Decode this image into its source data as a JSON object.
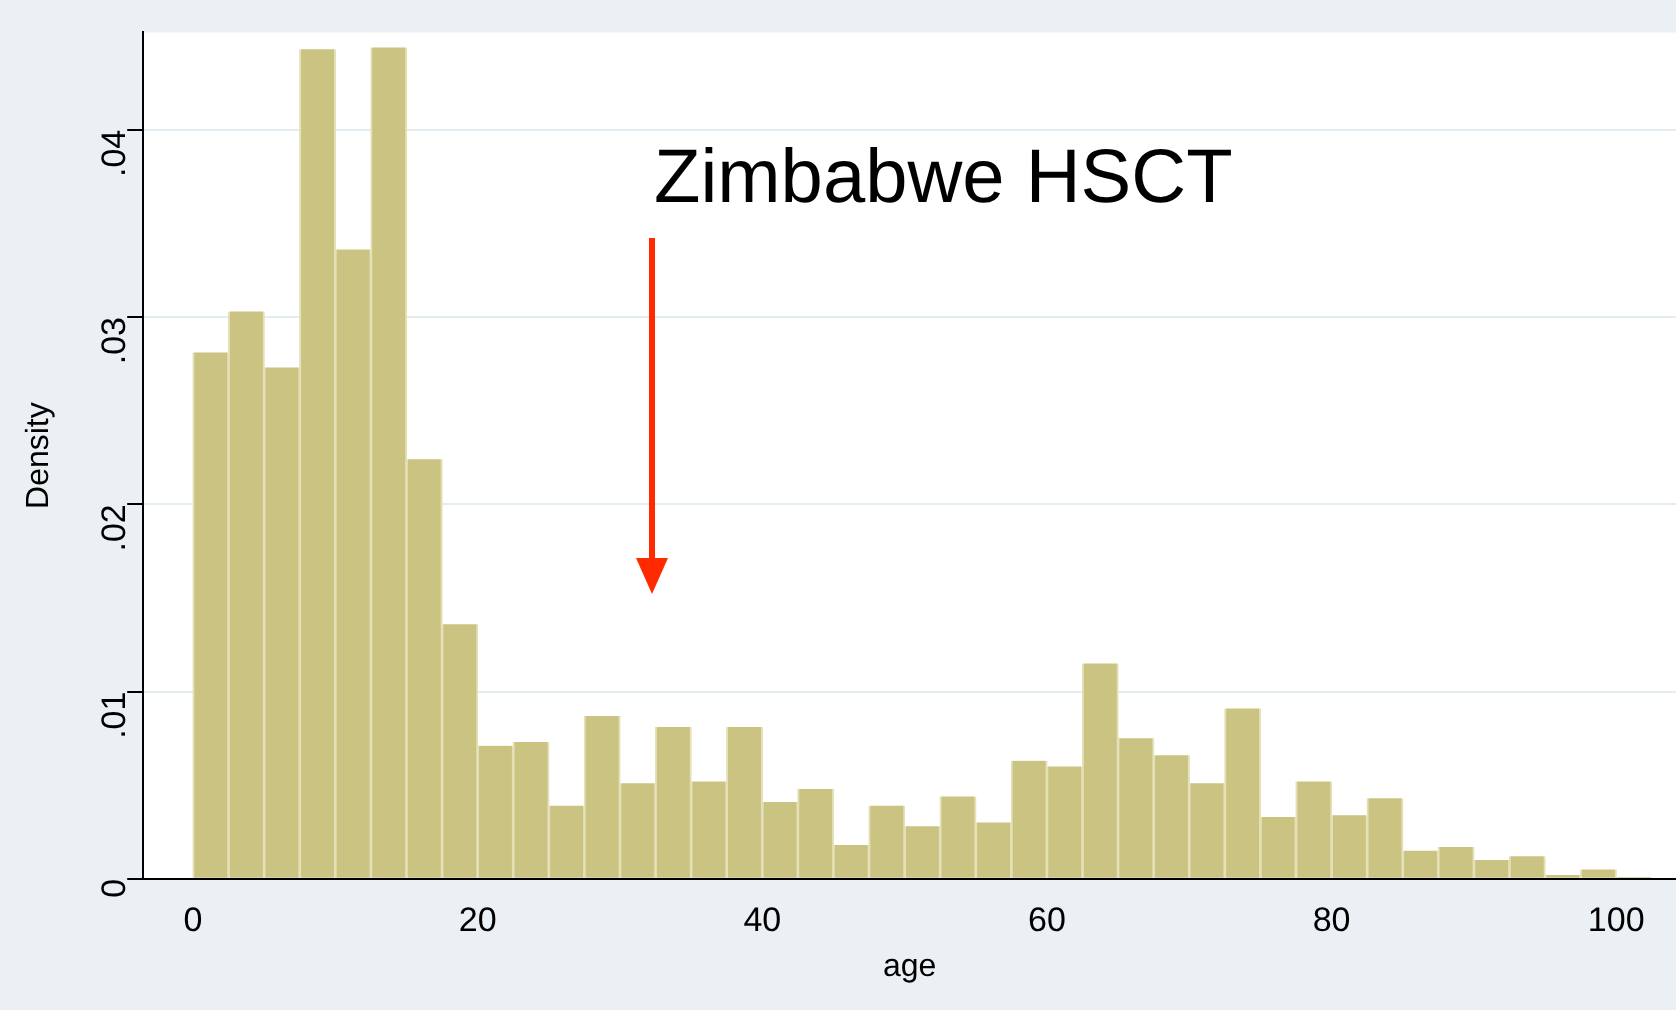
{
  "chart_data": {
    "type": "histogram",
    "xlabel": "age",
    "ylabel": "Density",
    "annotations": [
      "Zimbabwe HSCT"
    ],
    "bins": [
      0,
      2.5,
      5,
      7.5,
      10,
      12.5,
      15,
      17.5,
      20,
      22.5,
      25,
      27.5,
      30,
      32.5,
      35,
      37.5,
      40,
      42.5,
      45,
      47.5,
      50,
      52.5,
      55,
      57.5,
      60,
      62.5,
      65,
      67.5,
      70,
      72.5,
      75,
      77.5,
      80,
      82.5,
      85,
      87.5,
      90,
      92.5,
      95,
      97.5,
      100,
      102.5
    ],
    "values": [
      0.0281,
      0.0303,
      0.0273,
      0.0443,
      0.0336,
      0.0444,
      0.0224,
      0.0136,
      0.0071,
      0.0073,
      0.0039,
      0.0087,
      0.0051,
      0.0081,
      0.0052,
      0.0081,
      0.0041,
      0.0048,
      0.0018,
      0.0039,
      0.0028,
      0.0044,
      0.003,
      0.0063,
      0.006,
      0.0115,
      0.0075,
      0.0066,
      0.0051,
      0.0091,
      0.0033,
      0.0052,
      0.0034,
      0.0043,
      0.0015,
      0.0017,
      0.001,
      0.0012,
      0.0002,
      0.0005,
      0.0001
    ],
    "color": "#cbc382",
    "xlim": [
      -3.5,
      104.2
    ],
    "xticks": [
      0,
      20,
      40,
      60,
      80,
      100
    ],
    "ylim": [
      0,
      0.0452
    ],
    "yticks": [
      0,
      {
        "value": 0.01,
        "label": ".01"
      },
      {
        "value": 0.02,
        "label": ".02"
      },
      {
        "value": 0.03,
        "label": ".03"
      },
      {
        "value": 0.04,
        "label": ".04"
      }
    ],
    "grid": "y",
    "legend": false
  }
}
